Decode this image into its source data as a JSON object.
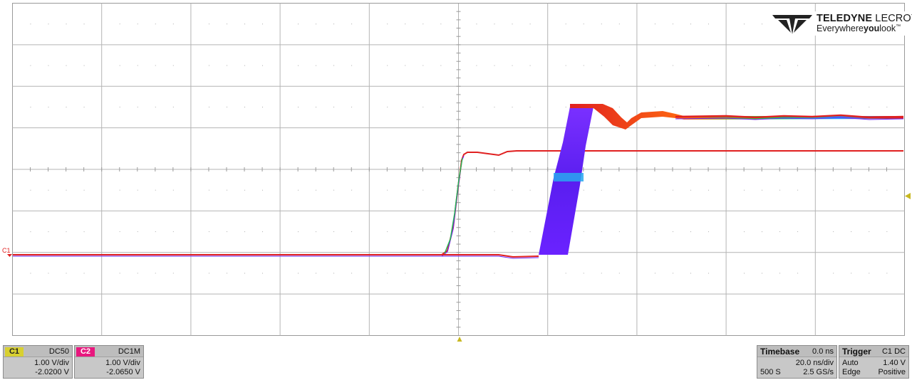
{
  "brand": {
    "name_bold": "TELEDYNE",
    "name_light": "LECROY",
    "tagline_pre": "Everywhere",
    "tagline_bold": "you",
    "tagline_post": "look",
    "tagline_tm": "™"
  },
  "ground_marker": "C1",
  "channels": [
    {
      "label": "C1",
      "coupling": "DC50",
      "scale": "1.00 V/div",
      "offset": "-2.0200 V",
      "color": "#d8d030"
    },
    {
      "label": "C2",
      "coupling": "DC1M",
      "scale": "1.00 V/div",
      "offset": "-2.0650 V",
      "color": "#e8177e"
    }
  ],
  "timebase": {
    "title": "Timebase",
    "delay": "0.0 ns",
    "scale": "20.0 ns/div",
    "samples": "500 S",
    "rate": "2.5 GS/s"
  },
  "trigger": {
    "title": "Trigger",
    "source": "C1 DC",
    "mode": "Auto",
    "level": "1.40 V",
    "type": "Edge",
    "slope": "Positive"
  },
  "colors": {
    "grid": "#aaaaaa",
    "trace_edge_c1": "#22bb55",
    "trace_red": "#e02020",
    "trace_persistence": "#6a22ff",
    "trigger_marker": "#c8b820"
  }
}
